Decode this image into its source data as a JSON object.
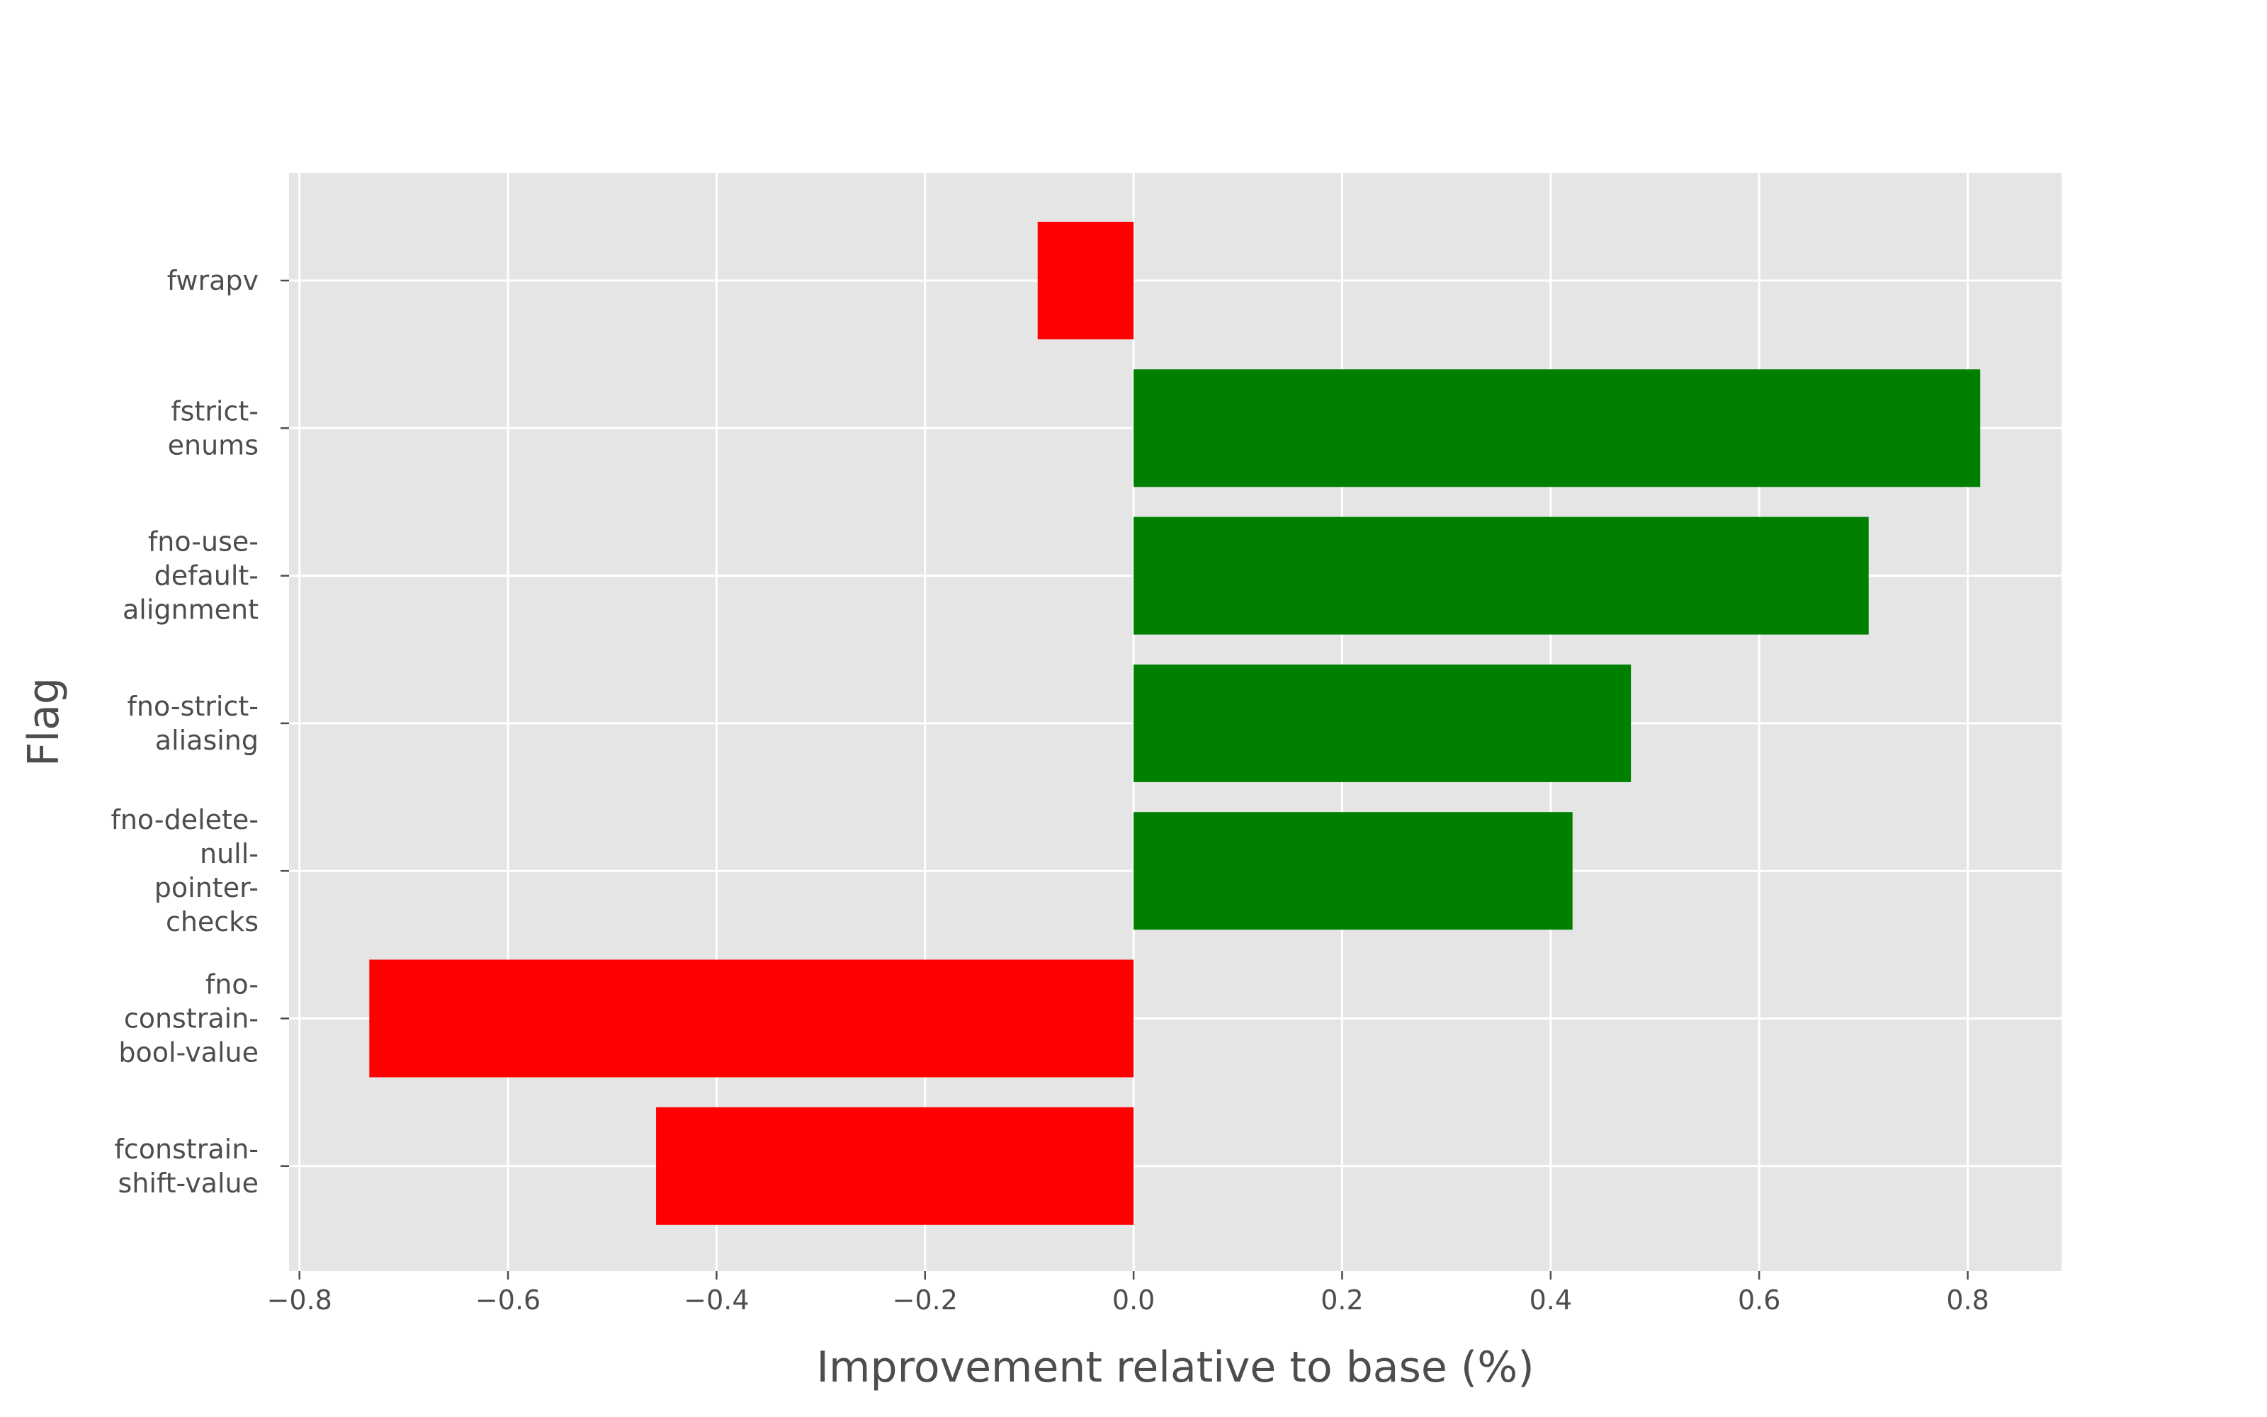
{
  "chart_data": {
    "type": "bar",
    "orientation": "horizontal",
    "title": "",
    "xlabel": "Improvement relative to base (%)",
    "ylabel": "Flag",
    "xlim": [
      -0.81,
      0.89
    ],
    "x_ticks": [
      -0.8,
      -0.6,
      -0.4,
      -0.2,
      0.0,
      0.2,
      0.4,
      0.6,
      0.8
    ],
    "x_tick_labels": [
      "−0.8",
      "−0.6",
      "−0.4",
      "−0.2",
      "0.0",
      "0.2",
      "0.4",
      "0.6",
      "0.8"
    ],
    "categories": [
      "fwrapv",
      "fstrict-enums",
      "fno-use-default-alignment",
      "fno-strict-aliasing",
      "fno-delete-null-pointer-checks",
      "fno-constrain-bool-value",
      "fconstrain-shift-value"
    ],
    "category_tick_lines": [
      [
        "fwrapv"
      ],
      [
        "fstrict-",
        "enums"
      ],
      [
        "fno-use-",
        "default-",
        "alignment"
      ],
      [
        "fno-strict-",
        "aliasing"
      ],
      [
        "fno-delete-",
        "null-",
        "pointer-",
        "checks"
      ],
      [
        "fno-",
        "constrain-",
        "bool-value"
      ],
      [
        "fconstrain-",
        "shift-value"
      ]
    ],
    "values": [
      -0.092,
      0.812,
      0.705,
      0.477,
      0.421,
      -0.733,
      -0.458
    ],
    "colors": {
      "positive": "#008000",
      "negative": "#ff0000",
      "plot_background": "#e5e5e5",
      "grid": "#ffffff",
      "text": "#4d4d4d"
    },
    "grid": true,
    "legend": "none"
  }
}
